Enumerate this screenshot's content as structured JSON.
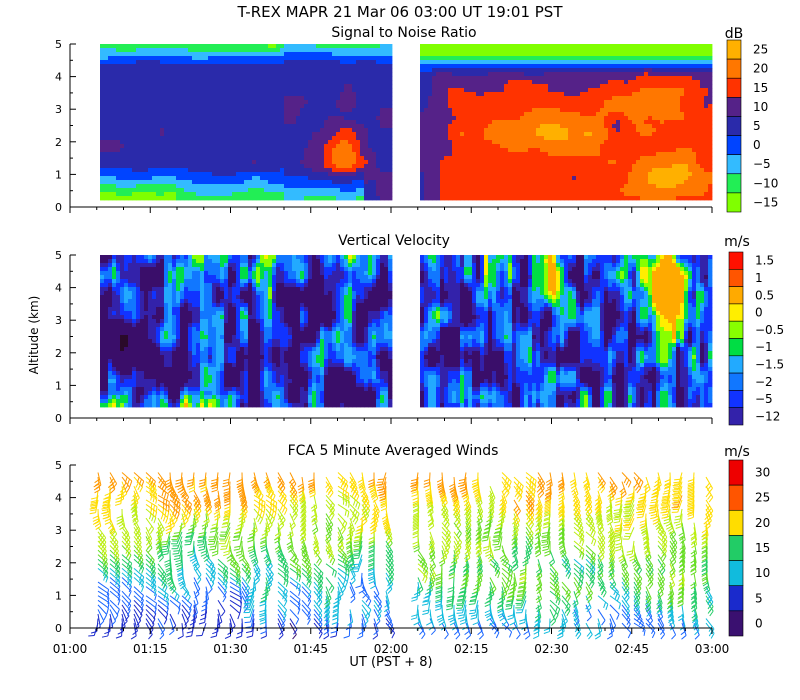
{
  "header": {
    "title": "T-REX   MAPR 21 Mar 06   03:00 UT   19:01   PST"
  },
  "colors": {
    "snr_scale": [
      "#80ff00",
      "#22ee55",
      "#33bbff",
      "#0044ff",
      "#2a2aaa",
      "#552288",
      "#ff3300",
      "#ff7700",
      "#ffb000"
    ],
    "vel_scale": [
      "#2a0a2a",
      "#3a0e6a",
      "#3322aa",
      "#1133ff",
      "#1177ff",
      "#22aaff",
      "#00dd44",
      "#88ff00",
      "#ffee00",
      "#ffaa00",
      "#ff5500",
      "#ff1100"
    ],
    "wind_scale": [
      "#3a1070",
      "#1a2acc",
      "#1a66ff",
      "#11bbdd",
      "#22cc66",
      "#66dd22",
      "#bbee11",
      "#ffdd00",
      "#ff9900",
      "#ff5500",
      "#ee0000"
    ]
  },
  "chart_data": [
    {
      "id": "snr",
      "type": "heatmap",
      "title": "Signal to Noise Ratio",
      "xlabel": "",
      "ylabel": "",
      "x_range": [
        "01:00",
        "03:00"
      ],
      "x_ticks": [
        "01:00",
        "01:15",
        "01:30",
        "01:45",
        "02:00",
        "02:15",
        "02:30",
        "02:45",
        "03:00"
      ],
      "y_range": [
        0,
        5
      ],
      "y_ticks": [
        "0",
        "1",
        "2",
        "3",
        "4",
        "5"
      ],
      "data_gap": [
        "01:59",
        "02:05"
      ],
      "colorbar": {
        "unit": "dB",
        "labels": [
          "25",
          "20",
          "15",
          "10",
          "5",
          "0",
          "−5",
          "−10",
          "−15"
        ],
        "levels": [
          -15,
          -10,
          -5,
          0,
          5,
          10,
          15,
          20,
          25
        ]
      }
    },
    {
      "id": "velocity",
      "type": "heatmap",
      "title": "Vertical Velocity",
      "xlabel": "",
      "ylabel": "Altitude (km)",
      "x_range": [
        "01:00",
        "03:00"
      ],
      "x_ticks": [
        "01:00",
        "01:15",
        "01:30",
        "01:45",
        "02:00",
        "02:15",
        "02:30",
        "02:45",
        "03:00"
      ],
      "y_range": [
        0,
        5
      ],
      "y_ticks": [
        "0",
        "1",
        "2",
        "3",
        "4",
        "5"
      ],
      "data_gap": [
        "01:59",
        "02:05"
      ],
      "colorbar": {
        "unit": "m/s",
        "labels": [
          "1.5",
          "1",
          "0.5",
          "0",
          "−0.5",
          "−1",
          "−1.5",
          "−2",
          "−5",
          "−12"
        ],
        "levels": [
          -12,
          -5,
          -2,
          -1.5,
          -1,
          -0.5,
          0,
          0.5,
          1,
          1.5
        ]
      }
    },
    {
      "id": "winds",
      "type": "scatter",
      "title": "FCA 5 Minute Averaged Winds",
      "xlabel": "UT  (PST + 8)",
      "ylabel": "",
      "x_range": [
        "01:00",
        "03:00"
      ],
      "x_ticks": [
        "01:00",
        "01:15",
        "01:30",
        "01:45",
        "02:00",
        "02:15",
        "02:30",
        "02:45",
        "03:00"
      ],
      "y_range": [
        0,
        5
      ],
      "y_ticks": [
        "0",
        "1",
        "2",
        "3",
        "4",
        "5"
      ],
      "data_gap": [
        "01:59",
        "02:05"
      ],
      "colorbar": {
        "unit": "m/s",
        "labels": [
          "30",
          "25",
          "20",
          "15",
          "10",
          "5",
          "0"
        ],
        "levels": [
          0,
          5,
          10,
          15,
          20,
          25,
          30
        ]
      }
    }
  ]
}
